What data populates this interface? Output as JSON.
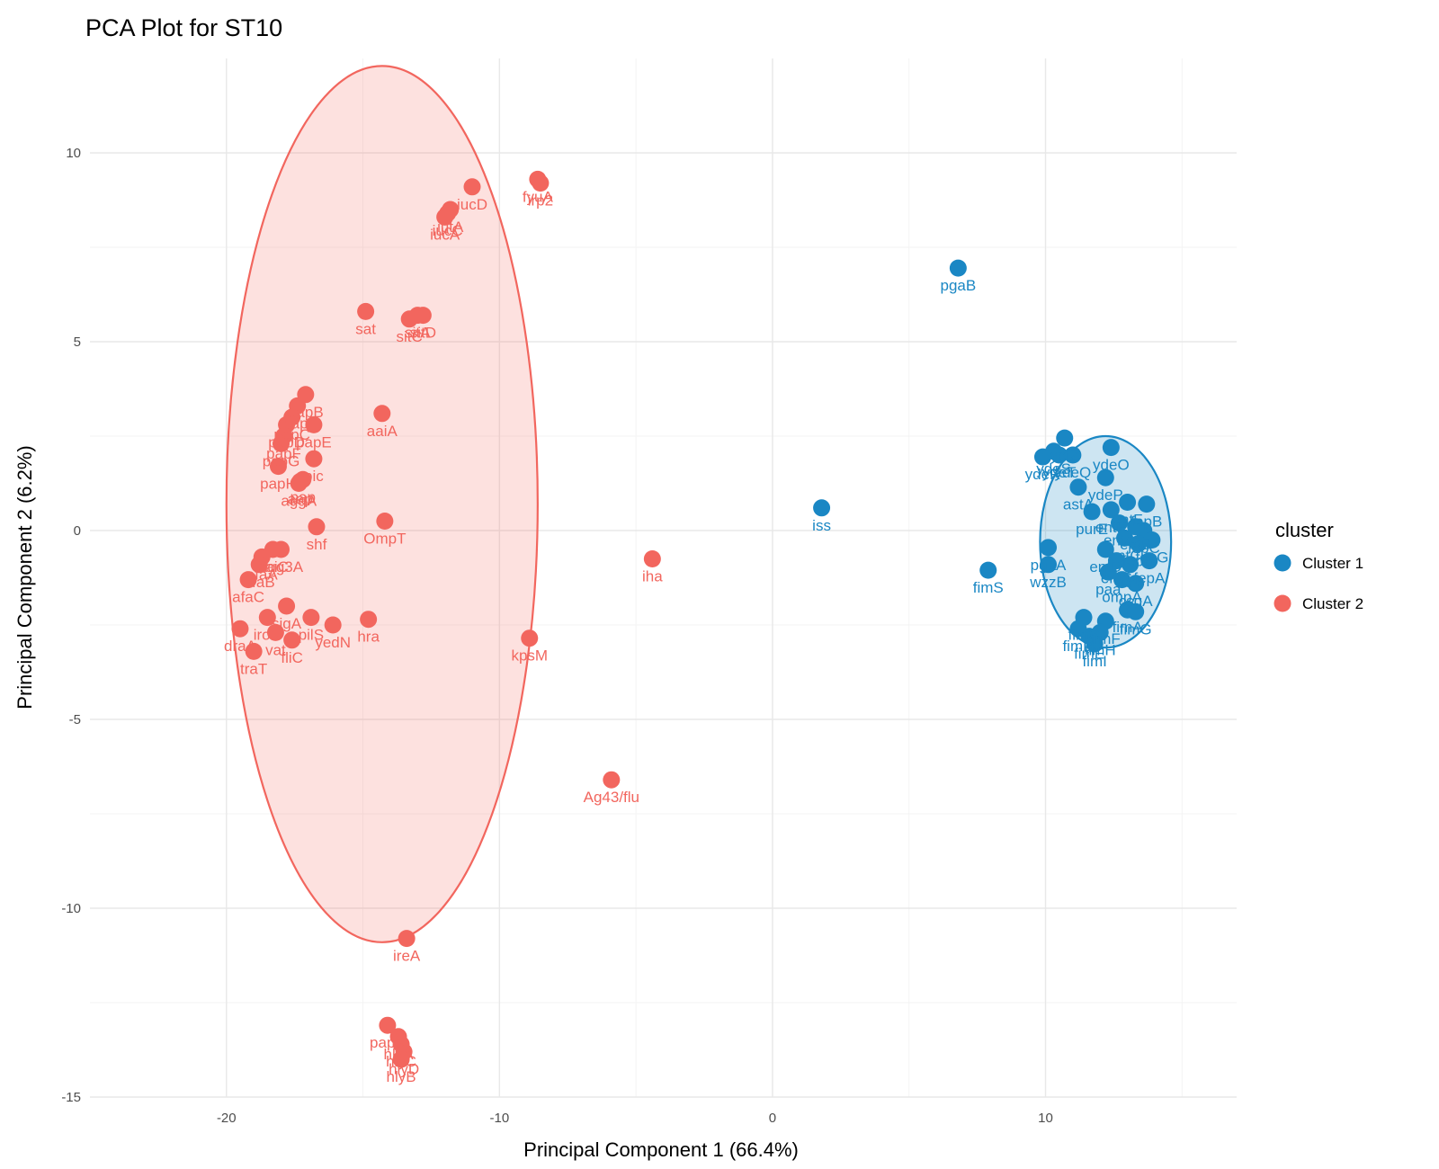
{
  "chart_data": {
    "type": "scatter",
    "title": "PCA Plot for ST10",
    "xlabel": "Principal Component 1 (66.4%)",
    "ylabel": "Principal Component 2 (6.2%)",
    "xlim": [
      -25,
      17
    ],
    "ylim": [
      -15,
      12.5
    ],
    "x_ticks": [
      -20,
      -10,
      0,
      10
    ],
    "y_ticks": [
      -15,
      -10,
      -5,
      0,
      5,
      10
    ],
    "x_tick_labels": [
      "-20",
      "-10",
      "0",
      "10"
    ],
    "y_tick_labels": [
      "-15",
      "-10",
      "-5",
      "0",
      "5",
      "10"
    ],
    "grid": true,
    "legend": {
      "title": "cluster",
      "placement": "right",
      "entries": [
        {
          "label": "Cluster 1",
          "color": "#1A87C4"
        },
        {
          "label": "Cluster 2",
          "color": "#F2665E"
        }
      ]
    },
    "ellipses": [
      {
        "series": "Cluster 2",
        "center": [
          -14.3,
          0.7
        ],
        "semi_x": 5.7,
        "semi_y": 11.6,
        "fill": "#F8766D",
        "fill_opacity": 0.22
      },
      {
        "series": "Cluster 1",
        "center": [
          12.2,
          -0.3
        ],
        "semi_x": 2.4,
        "semi_y": 2.8,
        "fill": "#1A87C4",
        "fill_opacity": 0.22
      }
    ],
    "series": [
      {
        "name": "Cluster 2",
        "color": "#F2665E",
        "points": [
          {
            "x": -11.0,
            "y": 9.1,
            "label": "iucD"
          },
          {
            "x": -11.8,
            "y": 8.5,
            "label": "iutA"
          },
          {
            "x": -12.0,
            "y": 8.3,
            "label": "iucA"
          },
          {
            "x": -11.9,
            "y": 8.4,
            "label": "iucC"
          },
          {
            "x": -8.6,
            "y": 9.3,
            "label": "fyuA"
          },
          {
            "x": -8.5,
            "y": 9.2,
            "label": "irp2"
          },
          {
            "x": -14.9,
            "y": 5.8,
            "label": "sat"
          },
          {
            "x": -13.0,
            "y": 5.7,
            "label": "sitA"
          },
          {
            "x": -12.8,
            "y": 5.7,
            "label": "sitD"
          },
          {
            "x": -13.3,
            "y": 5.6,
            "label": "sitC"
          },
          {
            "x": -17.1,
            "y": 3.6,
            "label": "papB"
          },
          {
            "x": -17.4,
            "y": 3.3,
            "label": "papI"
          },
          {
            "x": -17.6,
            "y": 3.0,
            "label": "papC"
          },
          {
            "x": -17.8,
            "y": 2.8,
            "label": "papD"
          },
          {
            "x": -16.8,
            "y": 2.8,
            "label": "papE"
          },
          {
            "x": -17.9,
            "y": 2.5,
            "label": "papF"
          },
          {
            "x": -18.0,
            "y": 2.3,
            "label": "papG"
          },
          {
            "x": -16.8,
            "y": 1.9,
            "label": "pic"
          },
          {
            "x": -18.1,
            "y": 1.7,
            "label": "papH"
          },
          {
            "x": -14.3,
            "y": 3.1,
            "label": "aaiA"
          },
          {
            "x": -17.3,
            "y": 1.3,
            "label": "aap"
          },
          {
            "x": -17.2,
            "y": 1.35,
            "label": "pap"
          },
          {
            "x": -17.35,
            "y": 1.25,
            "label": "aggA"
          },
          {
            "x": -16.7,
            "y": 0.1,
            "label": "shf"
          },
          {
            "x": -14.2,
            "y": 0.25,
            "label": "OmpT"
          },
          {
            "x": -18.3,
            "y": -0.5,
            "label": "aaiC"
          },
          {
            "x": -18.0,
            "y": -0.5,
            "label": "agg3A"
          },
          {
            "x": -18.7,
            "y": -0.7,
            "label": "afaA"
          },
          {
            "x": -18.8,
            "y": -0.9,
            "label": "afaB"
          },
          {
            "x": -19.2,
            "y": -1.3,
            "label": "afaC"
          },
          {
            "x": -4.4,
            "y": -0.75,
            "label": "iha"
          },
          {
            "x": -17.8,
            "y": -2.0,
            "label": "sigA"
          },
          {
            "x": -18.5,
            "y": -2.3,
            "label": "iroN"
          },
          {
            "x": -16.9,
            "y": -2.3,
            "label": "pilS"
          },
          {
            "x": -16.1,
            "y": -2.5,
            "label": "yedN"
          },
          {
            "x": -14.8,
            "y": -2.35,
            "label": "hra"
          },
          {
            "x": -19.5,
            "y": -2.6,
            "label": "draA"
          },
          {
            "x": -18.2,
            "y": -2.7,
            "label": "vat"
          },
          {
            "x": -17.6,
            "y": -2.9,
            "label": "fliC"
          },
          {
            "x": -19.0,
            "y": -3.2,
            "label": "traT"
          },
          {
            "x": -8.9,
            "y": -2.85,
            "label": "kpsM"
          },
          {
            "x": -5.9,
            "y": -6.6,
            "label": "Ag43/flu"
          },
          {
            "x": -13.4,
            "y": -10.8,
            "label": "ireA"
          },
          {
            "x": -14.1,
            "y": -13.1,
            "label": "papX"
          },
          {
            "x": -13.7,
            "y": -13.4,
            "label": "hlyA"
          },
          {
            "x": -13.6,
            "y": -13.6,
            "label": "hlyC"
          },
          {
            "x": -13.5,
            "y": -13.8,
            "label": "hlyD"
          },
          {
            "x": -13.6,
            "y": -14.0,
            "label": "hlyB"
          }
        ]
      },
      {
        "name": "Cluster 1",
        "color": "#1A87C4",
        "points": [
          {
            "x": 6.8,
            "y": 6.95,
            "label": "pgaB"
          },
          {
            "x": 1.8,
            "y": 0.6,
            "label": "iss"
          },
          {
            "x": 7.9,
            "y": -1.05,
            "label": "fimS"
          },
          {
            "x": 10.1,
            "y": -0.45,
            "label": "pgaA"
          },
          {
            "x": 10.1,
            "y": -0.9,
            "label": "wzzB"
          },
          {
            "x": 10.7,
            "y": 2.45,
            "label": "ycfZ"
          },
          {
            "x": 9.9,
            "y": 1.95,
            "label": "ydeR"
          },
          {
            "x": 10.3,
            "y": 2.1,
            "label": "ydeS"
          },
          {
            "x": 10.5,
            "y": 2.0,
            "label": "ydeT"
          },
          {
            "x": 11.0,
            "y": 2.0,
            "label": "ydeQ"
          },
          {
            "x": 12.4,
            "y": 2.2,
            "label": "ydeO"
          },
          {
            "x": 12.2,
            "y": 1.4,
            "label": "ydeP"
          },
          {
            "x": 11.2,
            "y": 1.15,
            "label": "astA"
          },
          {
            "x": 11.7,
            "y": 0.5,
            "label": "purE"
          },
          {
            "x": 12.4,
            "y": 0.55,
            "label": "entE"
          },
          {
            "x": 13.0,
            "y": 0.75,
            "label": "entF"
          },
          {
            "x": 13.7,
            "y": 0.7,
            "label": "fepB"
          },
          {
            "x": 12.7,
            "y": 0.2,
            "label": "entA"
          },
          {
            "x": 13.3,
            "y": 0.1,
            "label": "entB"
          },
          {
            "x": 13.6,
            "y": 0.0,
            "label": "fepC"
          },
          {
            "x": 12.9,
            "y": -0.2,
            "label": "entC"
          },
          {
            "x": 13.4,
            "y": -0.35,
            "label": "fepD"
          },
          {
            "x": 13.9,
            "y": -0.25,
            "label": "fepG"
          },
          {
            "x": 12.2,
            "y": -0.5,
            "label": "entD"
          },
          {
            "x": 12.6,
            "y": -0.8,
            "label": "entS"
          },
          {
            "x": 13.1,
            "y": -0.9,
            "label": "fes"
          },
          {
            "x": 13.8,
            "y": -0.8,
            "label": "fepA"
          },
          {
            "x": 12.3,
            "y": -1.1,
            "label": "paa"
          },
          {
            "x": 12.8,
            "y": -1.3,
            "label": "ompA"
          },
          {
            "x": 13.3,
            "y": -1.4,
            "label": "csgA"
          },
          {
            "x": 13.0,
            "y": -2.1,
            "label": "fimA"
          },
          {
            "x": 13.3,
            "y": -2.15,
            "label": "fimG"
          },
          {
            "x": 11.4,
            "y": -2.3,
            "label": "fimC"
          },
          {
            "x": 12.2,
            "y": -2.4,
            "label": "fimF"
          },
          {
            "x": 11.2,
            "y": -2.6,
            "label": "fimD"
          },
          {
            "x": 11.6,
            "y": -2.8,
            "label": "fimE"
          },
          {
            "x": 12.0,
            "y": -2.7,
            "label": "fimH"
          },
          {
            "x": 11.8,
            "y": -3.0,
            "label": "fimI"
          }
        ]
      }
    ]
  }
}
